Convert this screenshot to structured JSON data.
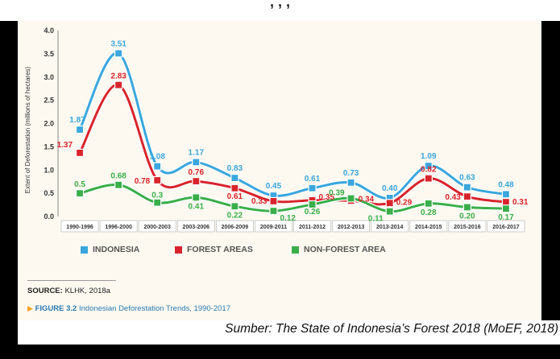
{
  "page": {
    "top_fragment": ", , ,",
    "source_caption": "Sumber: The State of Indonesia’s Forest 2018 (MoEF, 2018)",
    "source_label": "SOURCE:",
    "source_value": "KLHK, 2018a",
    "figure_number": "FIGURE 3.2",
    "figure_title": "Indonesian Deforestation Trends, 1990-2017"
  },
  "colors": {
    "indonesia": "#3aa6dd",
    "forest": "#d8242c",
    "nonforest": "#3aae4a"
  },
  "chart_data": {
    "type": "line",
    "title": "",
    "xlabel": "",
    "ylabel": "Extent of Deforestation (millions of hectares)",
    "ylim": [
      0,
      4.0
    ],
    "yticks": [
      "0.0",
      "0.5",
      "1.0",
      "1.5",
      "2.0",
      "2.5",
      "3.0",
      "3.5",
      "4.0"
    ],
    "grid": false,
    "legend_position": "bottom",
    "categories": [
      "1990-1996",
      "1996-2000",
      "2000-2003",
      "2003-2006",
      "2006-2009",
      "2009-2011",
      "2011-2012",
      "2012-2013",
      "2013-2014",
      "2014-2015",
      "2015-2016",
      "2016-2017"
    ],
    "series": [
      {
        "name": "INDONESIA",
        "values": [
          1.87,
          3.51,
          1.08,
          1.17,
          0.83,
          0.45,
          0.61,
          0.73,
          0.4,
          1.09,
          0.63,
          0.48
        ],
        "labels": [
          "1.87",
          "3.51",
          "1.08",
          "1.17",
          "0.83",
          "0.45",
          "0.61",
          "0.73",
          "0.40",
          "1.09",
          "0.63",
          "0.48"
        ]
      },
      {
        "name": "FOREST AREAS",
        "values": [
          1.37,
          2.83,
          0.78,
          0.76,
          0.61,
          0.33,
          0.35,
          0.34,
          0.29,
          0.82,
          0.43,
          0.31
        ],
        "labels": [
          "1.37",
          "2.83",
          "0.78",
          "0.76",
          "0.61",
          "0.33",
          "0.35",
          "0.34",
          "0.29",
          "0.82",
          "0.43",
          "0.31"
        ]
      },
      {
        "name": "NON-FOREST AREA",
        "values": [
          0.5,
          0.68,
          0.3,
          0.41,
          0.22,
          0.12,
          0.26,
          0.39,
          0.11,
          0.28,
          0.2,
          0.17
        ],
        "labels": [
          "0.5",
          "0.68",
          "0.3",
          "0.41",
          "0.22",
          "0.12",
          "0.26",
          "0.39",
          "0.11",
          "0.28",
          "0.20",
          "0.17"
        ]
      }
    ]
  }
}
